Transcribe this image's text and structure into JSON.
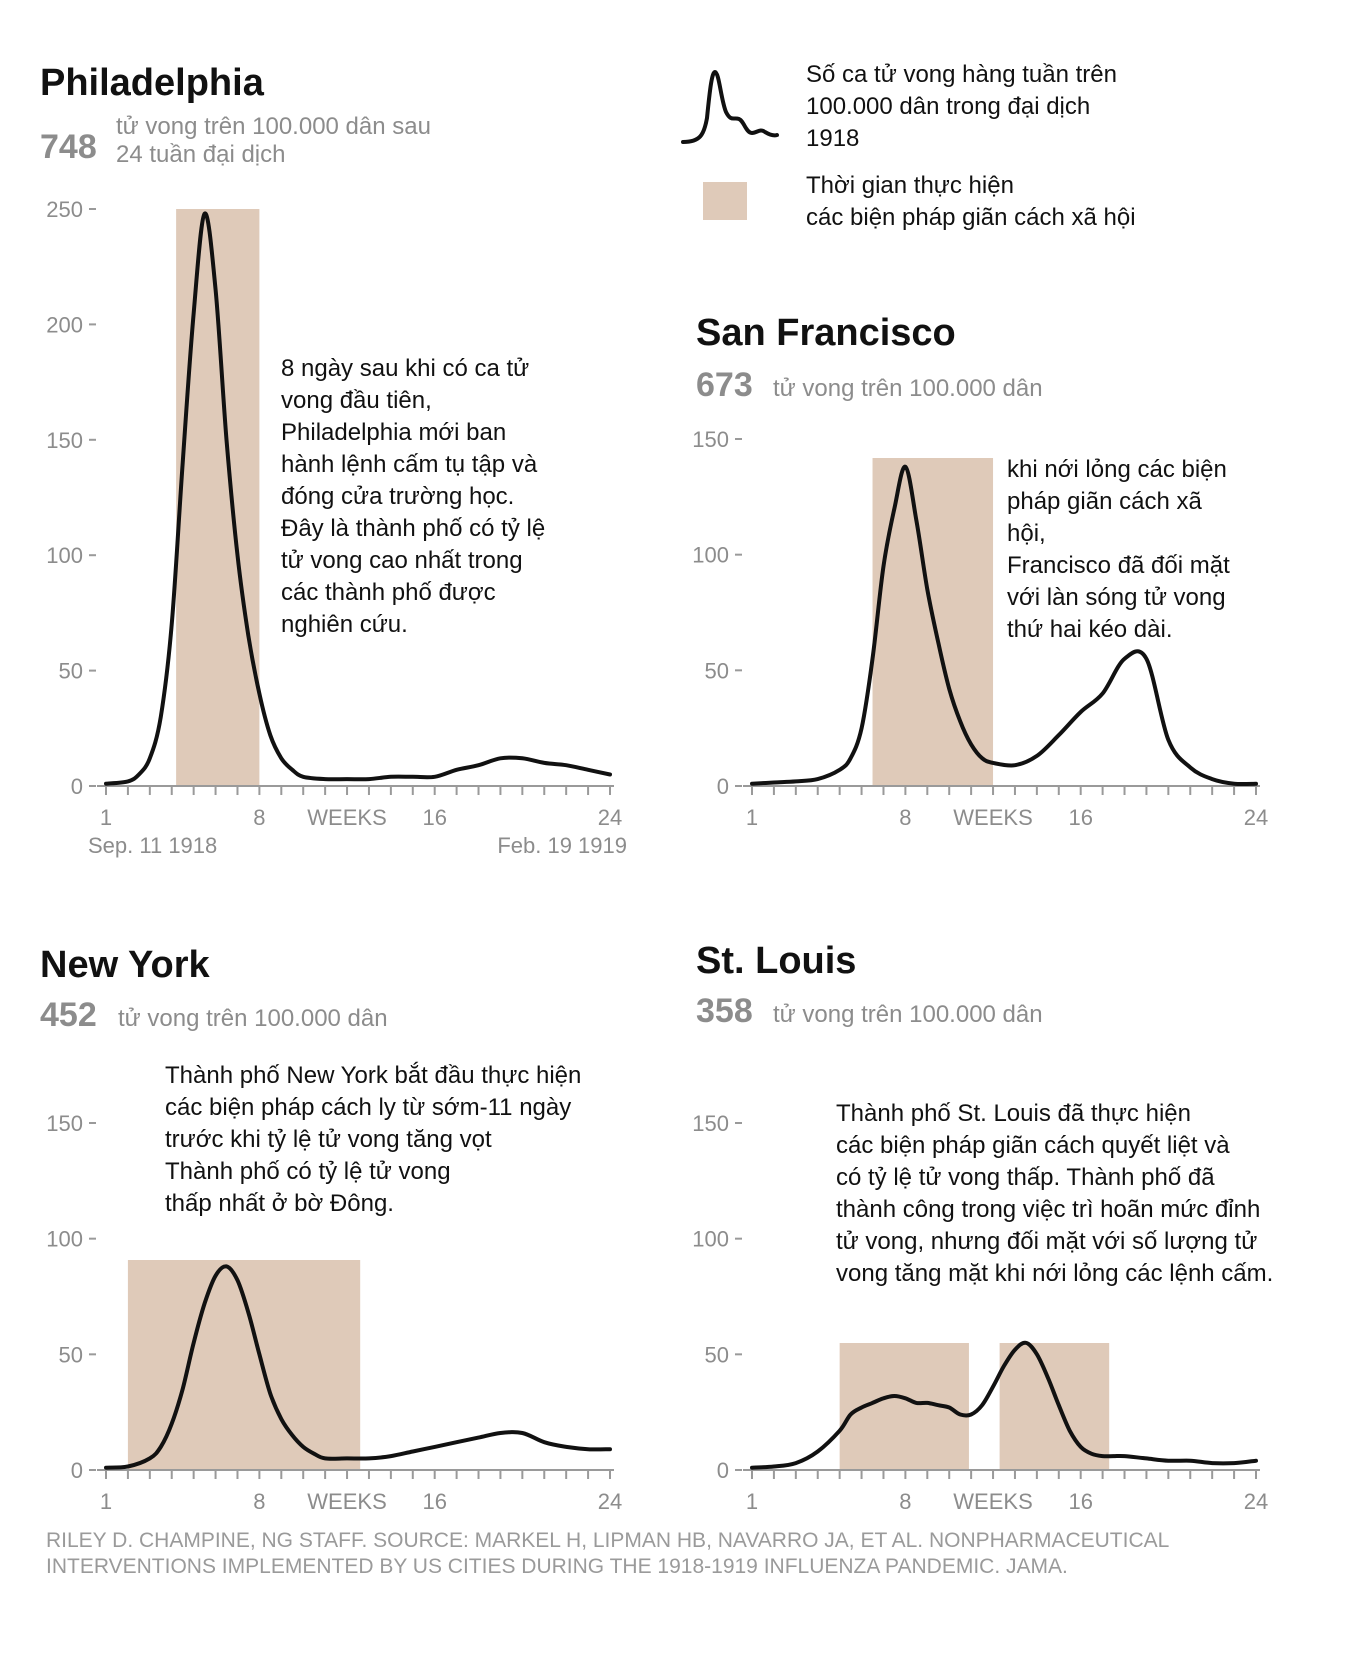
{
  "colors": {
    "band": "#dfcab9",
    "line": "#111111",
    "muted": "#8c8c8c"
  },
  "legend": {
    "line_label": [
      "Số ca tử vong hàng tuần trên",
      "100.000 dân trong đại dịch",
      "1918"
    ],
    "band_label": [
      "Thời gian thực hiện",
      "các biện pháp giãn cách xã hội"
    ]
  },
  "source": [
    "RILEY D. CHAMPINE, NG STAFF. SOURCE: MARKEL H, LIPMAN HB, NAVARRO JA, ET AL. NONPHARMACEUTICAL",
    "INTERVENTIONS IMPLEMENTED BY US CITIES DURING THE 1918-1919 INFLUENZA PANDEMIC. JAMA."
  ],
  "chart_data": [
    {
      "type": "line",
      "title": "Philadelphia",
      "total": "748",
      "subtitle": [
        "tử vong trên 100.000 dân sau",
        "24 tuần đại dịch"
      ],
      "xlabel": "WEEKS",
      "xlim": [
        1,
        24
      ],
      "ylim": [
        0,
        250
      ],
      "yticks": [
        0,
        50,
        100,
        150,
        200,
        250
      ],
      "xticks": [
        1,
        8,
        16,
        24
      ],
      "date_labels": [
        "Sep. 11 1918",
        "Feb. 19 1919"
      ],
      "bands": [
        [
          4.2,
          8.0
        ]
      ],
      "x": [
        1,
        2,
        2.5,
        3,
        3.5,
        4,
        4.5,
        5,
        5.5,
        6,
        6.5,
        7,
        7.5,
        8,
        8.5,
        9,
        9.5,
        10,
        11,
        12,
        13,
        14,
        15,
        16,
        17,
        18,
        19,
        20,
        21,
        22,
        23,
        24
      ],
      "values": [
        1,
        2,
        5,
        12,
        30,
        70,
        140,
        205,
        248,
        215,
        150,
        100,
        65,
        40,
        22,
        12,
        7,
        4,
        3,
        3,
        3,
        4,
        4,
        4,
        7,
        9,
        12,
        12,
        10,
        9,
        7,
        5
      ],
      "annotation": [
        "8 ngày sau khi có ca tử",
        "vong đầu tiên,",
        "Philadelphia mới ban",
        "hành lệnh cấm tụ tập và",
        "đóng cửa trường học.",
        "Đây là thành phố có tỷ lệ",
        "tử vong cao nhất trong",
        "các thành phố được",
        "nghiên cứu."
      ]
    },
    {
      "type": "line",
      "title": "San Francisco",
      "total": "673",
      "subtitle": [
        "tử vong trên 100.000 dân"
      ],
      "xlabel": "WEEKS",
      "xlim": [
        1,
        24
      ],
      "ylim": [
        0,
        150
      ],
      "yticks": [
        0,
        50,
        100,
        150
      ],
      "xticks": [
        1,
        8,
        16,
        24
      ],
      "date_labels": [],
      "bands": [
        [
          6.5,
          12.0
        ]
      ],
      "x": [
        1,
        2,
        3,
        4,
        5,
        5.5,
        6,
        6.5,
        7,
        7.5,
        8,
        8.5,
        9,
        9.5,
        10,
        10.5,
        11,
        11.5,
        12,
        13,
        14,
        15,
        16,
        17,
        18,
        19,
        20,
        21,
        22,
        23,
        24
      ],
      "values": [
        1,
        1.5,
        2,
        3,
        7,
        12,
        25,
        55,
        95,
        120,
        138,
        115,
        85,
        62,
        42,
        28,
        18,
        12,
        10,
        9,
        13,
        22,
        32,
        40,
        55,
        55,
        20,
        8,
        3,
        1,
        1
      ],
      "annotation": [
        "khi nới lỏng các biện",
        "pháp giãn cách xã",
        "hội,",
        "Francisco đã đối mặt",
        "với làn sóng tử vong",
        "thứ hai kéo dài."
      ]
    },
    {
      "type": "line",
      "title": "New York",
      "total": "452",
      "subtitle": [
        "tử vong trên 100.000 dân"
      ],
      "xlabel": "WEEKS",
      "xlim": [
        1,
        24
      ],
      "ylim": [
        0,
        150
      ],
      "yticks": [
        0,
        50,
        100,
        150
      ],
      "xticks": [
        1,
        8,
        16,
        24
      ],
      "date_labels": [],
      "bands": [
        [
          2.0,
          12.6
        ]
      ],
      "x": [
        1,
        2,
        3,
        3.5,
        4,
        4.5,
        5,
        5.5,
        6,
        6.5,
        7,
        7.5,
        8,
        8.5,
        9,
        9.5,
        10,
        10.5,
        11,
        12,
        13,
        14,
        15,
        16,
        17,
        18,
        19,
        20,
        21,
        22,
        23,
        24
      ],
      "values": [
        1,
        1.5,
        5,
        10,
        20,
        35,
        55,
        72,
        84,
        88,
        82,
        68,
        50,
        33,
        22,
        15,
        10,
        7,
        5,
        5,
        5,
        6,
        8,
        10,
        12,
        14,
        16,
        16,
        12,
        10,
        9,
        9
      ],
      "annotation": [
        "Thành phố New York bắt đầu thực hiện",
        "các biện pháp cách ly từ sớm-11 ngày",
        "trước khi tỷ lệ tử vong tăng vọt",
        "Thành phố có tỷ lệ tử vong",
        "thấp nhất ở bờ Đông."
      ]
    },
    {
      "type": "line",
      "title": "St. Louis",
      "total": "358",
      "subtitle": [
        "tử vong trên 100.000 dân"
      ],
      "xlabel": "WEEKS",
      "xlim": [
        1,
        24
      ],
      "ylim": [
        0,
        150
      ],
      "yticks": [
        0,
        50,
        100,
        150
      ],
      "xticks": [
        1,
        8,
        16,
        24
      ],
      "date_labels": [],
      "bands": [
        [
          5.0,
          10.9
        ],
        [
          12.3,
          17.3
        ]
      ],
      "x": [
        1,
        2,
        3,
        4,
        5,
        5.5,
        6,
        6.5,
        7,
        7.5,
        8,
        8.5,
        9,
        9.5,
        10,
        10.5,
        11,
        11.5,
        12,
        12.5,
        13,
        13.5,
        14,
        14.5,
        15,
        15.5,
        16,
        16.5,
        17,
        17.5,
        18,
        19,
        20,
        21,
        22,
        23,
        24
      ],
      "values": [
        1,
        1.5,
        3,
        8,
        17,
        24,
        27,
        29,
        31,
        32,
        31,
        29,
        29,
        28,
        27,
        24,
        24,
        28,
        36,
        45,
        52,
        55,
        50,
        40,
        28,
        17,
        10,
        7,
        6,
        6,
        6,
        5,
        4,
        4,
        3,
        3,
        4
      ],
      "annotation": [
        "Thành phố St. Louis đã thực hiện",
        "các biện pháp giãn cách quyết liệt và",
        "có tỷ lệ tử vong thấp. Thành phố đã",
        "thành công trong việc trì hoãn mức đỉnh",
        "tử vong, nhưng đối mặt với số lượng tử",
        "vong tăng mặt khi nới lỏng các lệnh cấm."
      ]
    }
  ]
}
